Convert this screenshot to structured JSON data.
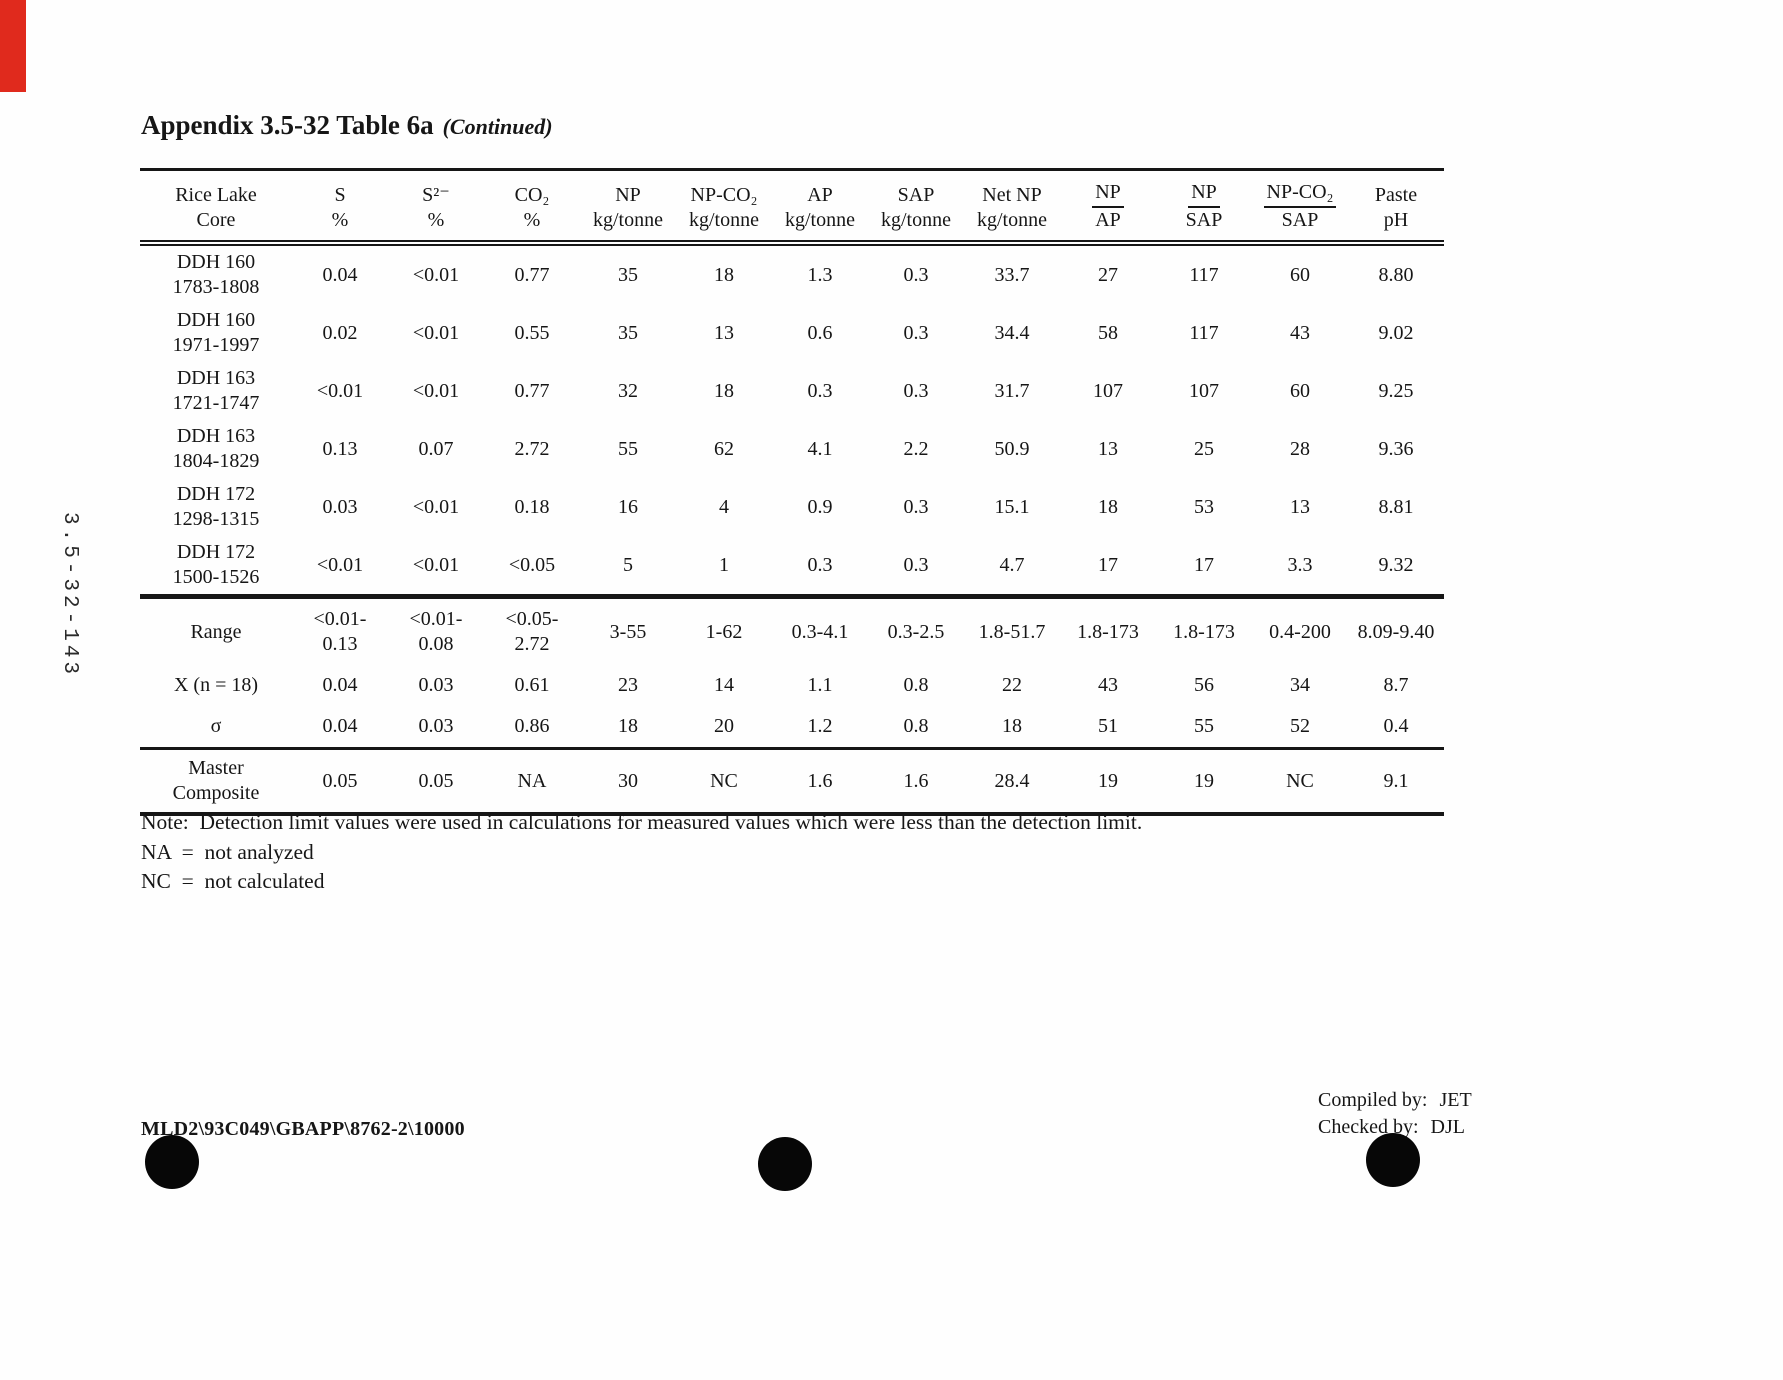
{
  "page": {
    "title": "Appendix 3.5-32 Table 6a",
    "title_suffix": "(Continued)",
    "side_code": "3.5-32-143",
    "colors": {
      "edge_mark": "#e02a1d",
      "ink": "#161616"
    },
    "notes": {
      "note": "Note:  Detection limit values were used in calculations for measured values which were less than the detection limit.",
      "na": "NA  =  not analyzed",
      "nc": "NC  =  not calculated"
    },
    "footer": {
      "doc_code": "MLD2\\93C049\\GBAPP\\8762-2\\10000",
      "compiled_label": "Compiled by:",
      "compiled_value": "JET",
      "checked_label": "Checked by:",
      "checked_value": "DJL"
    }
  },
  "table": {
    "headers": [
      {
        "l1": "Rice Lake",
        "l2": "Core"
      },
      {
        "l1": "S",
        "l2": "%"
      },
      {
        "l1": "S²⁻",
        "l2": "%"
      },
      {
        "l1": "CO₂",
        "l2": "%"
      },
      {
        "l1": "NP",
        "l2": "kg/tonne"
      },
      {
        "l1": "NP-CO₂",
        "l2": "kg/tonne"
      },
      {
        "l1": "AP",
        "l2": "kg/tonne"
      },
      {
        "l1": "SAP",
        "l2": "kg/tonne"
      },
      {
        "l1": "Net NP",
        "l2": "kg/tonne"
      },
      {
        "l1": "NP",
        "l2": "AP"
      },
      {
        "l1": "NP",
        "l2": "SAP"
      },
      {
        "l1": "NP-CO₂",
        "l2": "SAP"
      },
      {
        "l1": "Paste",
        "l2": "pH"
      }
    ],
    "rows": [
      {
        "core": "DDH 160\n1783-1808",
        "cells": [
          "0.04",
          "<0.01",
          "0.77",
          "35",
          "18",
          "1.3",
          "0.3",
          "33.7",
          "27",
          "117",
          "60",
          "8.80"
        ]
      },
      {
        "core": "DDH 160\n1971-1997",
        "cells": [
          "0.02",
          "<0.01",
          "0.55",
          "35",
          "13",
          "0.6",
          "0.3",
          "34.4",
          "58",
          "117",
          "43",
          "9.02"
        ]
      },
      {
        "core": "DDH 163\n1721-1747",
        "cells": [
          "<0.01",
          "<0.01",
          "0.77",
          "32",
          "18",
          "0.3",
          "0.3",
          "31.7",
          "107",
          "107",
          "60",
          "9.25"
        ]
      },
      {
        "core": "DDH 163\n1804-1829",
        "cells": [
          "0.13",
          "0.07",
          "2.72",
          "55",
          "62",
          "4.1",
          "2.2",
          "50.9",
          "13",
          "25",
          "28",
          "9.36"
        ]
      },
      {
        "core": "DDH 172\n1298-1315",
        "cells": [
          "0.03",
          "<0.01",
          "0.18",
          "16",
          "4",
          "0.9",
          "0.3",
          "15.1",
          "18",
          "53",
          "13",
          "8.81"
        ]
      },
      {
        "core": "DDH 172\n1500-1526",
        "cells": [
          "<0.01",
          "<0.01",
          "<0.05",
          "5",
          "1",
          "0.3",
          "0.3",
          "4.7",
          "17",
          "17",
          "3.3",
          "9.32"
        ]
      }
    ],
    "summary_rows": [
      {
        "core": "Range",
        "cells": [
          "<0.01-\n0.13",
          "<0.01-\n0.08",
          "<0.05-\n2.72",
          "3-55",
          "1-62",
          "0.3-4.1",
          "0.3-2.5",
          "1.8-51.7",
          "1.8-173",
          "1.8-173",
          "0.4-200",
          "8.09-9.40"
        ]
      },
      {
        "core": "X (n = 18)",
        "cells": [
          "0.04",
          "0.03",
          "0.61",
          "23",
          "14",
          "1.1",
          "0.8",
          "22",
          "43",
          "56",
          "34",
          "8.7"
        ]
      },
      {
        "core": "σ",
        "cells": [
          "0.04",
          "0.03",
          "0.86",
          "18",
          "20",
          "1.2",
          "0.8",
          "18",
          "51",
          "55",
          "52",
          "0.4"
        ]
      }
    ],
    "master_row": {
      "core": "Master\nComposite",
      "cells": [
        "0.05",
        "0.05",
        "NA",
        "30",
        "NC",
        "1.6",
        "1.6",
        "28.4",
        "19",
        "19",
        "NC",
        "9.1"
      ]
    }
  }
}
